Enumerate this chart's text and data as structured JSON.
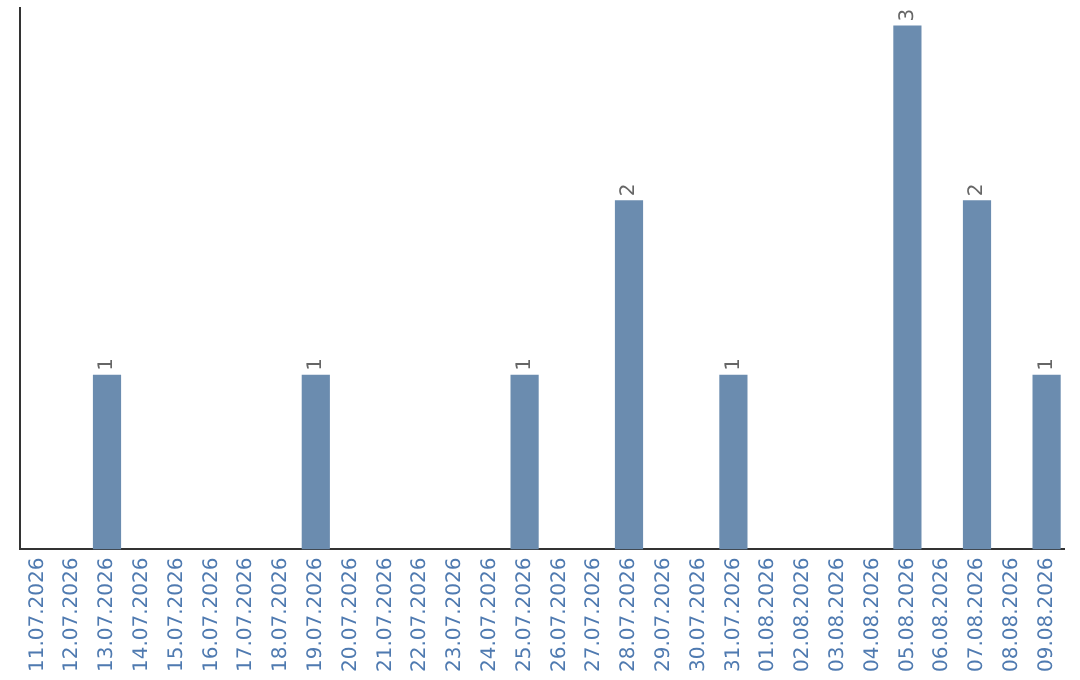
{
  "chart_data": {
    "type": "bar",
    "categories": [
      "11.07.2026",
      "12.07.2026",
      "13.07.2026",
      "14.07.2026",
      "15.07.2026",
      "16.07.2026",
      "17.07.2026",
      "18.07.2026",
      "19.07.2026",
      "20.07.2026",
      "21.07.2026",
      "22.07.2026",
      "23.07.2026",
      "24.07.2026",
      "25.07.2026",
      "26.07.2026",
      "27.07.2026",
      "28.07.2026",
      "29.07.2026",
      "30.07.2026",
      "31.07.2026",
      "01.08.2026",
      "02.08.2026",
      "03.08.2026",
      "04.08.2026",
      "05.08.2026",
      "06.08.2026",
      "07.08.2026",
      "08.08.2026",
      "09.08.2026"
    ],
    "values": [
      0,
      0,
      1,
      0,
      0,
      0,
      0,
      0,
      1,
      0,
      0,
      0,
      0,
      0,
      1,
      0,
      0,
      2,
      0,
      0,
      1,
      0,
      0,
      0,
      0,
      3,
      0,
      2,
      0,
      1
    ],
    "value_labels": [
      null,
      null,
      "1",
      null,
      null,
      null,
      null,
      null,
      "1",
      null,
      null,
      null,
      null,
      null,
      "1",
      null,
      null,
      "2",
      null,
      null,
      "1",
      null,
      null,
      null,
      null,
      "3",
      null,
      "2",
      null,
      "1"
    ],
    "color": "#6b8caf",
    "ylim": [
      0,
      3.1
    ],
    "tick_labels": "x",
    "grid": false,
    "legend": false
  }
}
